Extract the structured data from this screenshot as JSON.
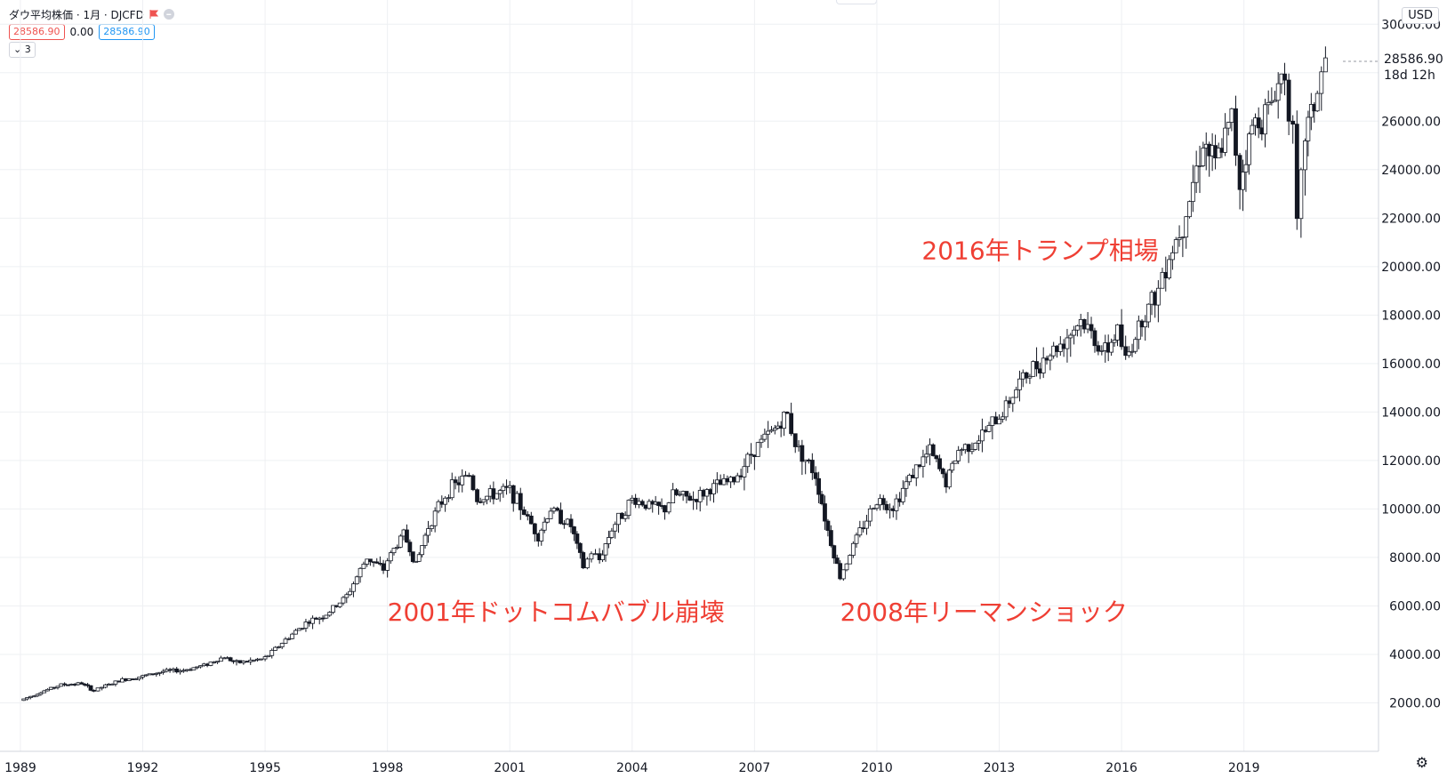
{
  "legend": {
    "title": "ダウ平均株価 · 1月 · DJCFD",
    "open_pill": "28586.90",
    "change": "0.00",
    "close_pill": "28586.90",
    "collapse_label": "3"
  },
  "currency": "USD",
  "last_price": "28586.90",
  "countdown": "18d 12h",
  "colors": {
    "annotation": "#ef3f34",
    "up": "#ffffff",
    "down": "#131722"
  },
  "icons": {
    "flag": "flag-icon",
    "remove": "remove-icon",
    "chevron": "chevron-down-icon",
    "settings": "gear-icon"
  },
  "chart_data": {
    "type": "candlestick",
    "title": "",
    "xlabel": "",
    "ylabel": "",
    "ylim": [
      0,
      31000
    ],
    "y_ticks": [
      "2000.00",
      "4000.00",
      "6000.00",
      "8000.00",
      "10000.00",
      "12000.00",
      "14000.00",
      "16000.00",
      "18000.00",
      "20000.00",
      "22000.00",
      "24000.00",
      "26000.00",
      "28000.00",
      "30000.00"
    ],
    "x_ticks": [
      "1989",
      "1992",
      "1995",
      "1998",
      "2001",
      "2004",
      "2007",
      "2010",
      "2013",
      "2016",
      "2019"
    ],
    "annotations": [
      {
        "text": "2016年トランプ相場",
        "year": 2011.1,
        "price": 20300
      },
      {
        "text": "2001年ドットコムバブル崩壊",
        "year": 1998.0,
        "price": 5400
      },
      {
        "text": "2008年リーマンショック",
        "year": 2009.1,
        "price": 5400
      }
    ],
    "series": [
      {
        "values": [
          [
            1989.0,
            2100
          ],
          [
            1989.5,
            2450
          ],
          [
            1990.0,
            2750
          ],
          [
            1990.5,
            2800
          ],
          [
            1990.8,
            2500
          ],
          [
            1991.0,
            2650
          ],
          [
            1991.5,
            2950
          ],
          [
            1992.0,
            3100
          ],
          [
            1992.5,
            3300
          ],
          [
            1993.0,
            3350
          ],
          [
            1993.5,
            3550
          ],
          [
            1994.0,
            3900
          ],
          [
            1994.3,
            3650
          ],
          [
            1994.9,
            3800
          ],
          [
            1995.0,
            3850
          ],
          [
            1995.5,
            4600
          ],
          [
            1996.0,
            5300
          ],
          [
            1996.5,
            5650
          ],
          [
            1997.0,
            6400
          ],
          [
            1997.5,
            8000
          ],
          [
            1997.9,
            7500
          ],
          [
            1998.0,
            7900
          ],
          [
            1998.4,
            9000
          ],
          [
            1998.7,
            7700
          ],
          [
            1999.0,
            9300
          ],
          [
            1999.5,
            10800
          ],
          [
            2000.0,
            11400
          ],
          [
            2000.2,
            10400
          ],
          [
            2000.6,
            10600
          ],
          [
            2001.0,
            10800
          ],
          [
            2001.7,
            8900
          ],
          [
            2002.0,
            10000
          ],
          [
            2002.5,
            9300
          ],
          [
            2002.8,
            7600
          ],
          [
            2003.0,
            8200
          ],
          [
            2003.2,
            7900
          ],
          [
            2003.5,
            9200
          ],
          [
            2004.0,
            10400
          ],
          [
            2004.5,
            10100
          ],
          [
            2004.8,
            10000
          ],
          [
            2005.0,
            10600
          ],
          [
            2005.5,
            10400
          ],
          [
            2006.0,
            10900
          ],
          [
            2006.5,
            11200
          ],
          [
            2007.0,
            12500
          ],
          [
            2007.5,
            13300
          ],
          [
            2007.8,
            13900
          ],
          [
            2008.0,
            12700
          ],
          [
            2008.5,
            11400
          ],
          [
            2008.8,
            9100
          ],
          [
            2009.1,
            7200
          ],
          [
            2009.5,
            8800
          ],
          [
            2010.0,
            10400
          ],
          [
            2010.4,
            10100
          ],
          [
            2010.8,
            11300
          ],
          [
            2011.3,
            12400
          ],
          [
            2011.7,
            11100
          ],
          [
            2012.0,
            12400
          ],
          [
            2012.5,
            12900
          ],
          [
            2013.0,
            13800
          ],
          [
            2013.5,
            15200
          ],
          [
            2014.0,
            16100
          ],
          [
            2014.5,
            16800
          ],
          [
            2015.0,
            17800
          ],
          [
            2015.6,
            16400
          ],
          [
            2015.9,
            17400
          ],
          [
            2016.1,
            16100
          ],
          [
            2016.5,
            17900
          ],
          [
            2016.9,
            19000
          ],
          [
            2017.0,
            19800
          ],
          [
            2017.5,
            21800
          ],
          [
            2018.0,
            25200
          ],
          [
            2018.3,
            24200
          ],
          [
            2018.7,
            26100
          ],
          [
            2018.9,
            23500
          ],
          [
            2019.2,
            25800
          ],
          [
            2019.6,
            26500
          ],
          [
            2020.0,
            28200
          ],
          [
            2020.2,
            25300
          ],
          [
            2020.3,
            21500
          ],
          [
            2020.5,
            25500
          ],
          [
            2020.8,
            27200
          ],
          [
            2021.0,
            28586.9
          ]
        ]
      }
    ]
  }
}
